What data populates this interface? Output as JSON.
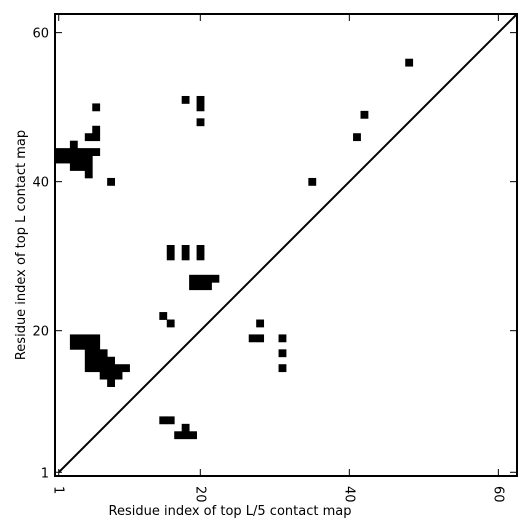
{
  "chart_data": {
    "type": "heatmap",
    "xlabel": "Residue index of top L/5 contact map",
    "ylabel": "Residue index of top L contact map",
    "xlim": [
      0.5,
      62.5
    ],
    "ylim": [
      0.5,
      62.5
    ],
    "x_ticks": [
      1,
      20,
      40,
      60
    ],
    "y_ticks": [
      1,
      20,
      40,
      60
    ],
    "grid": false,
    "diagonal": [
      [
        1,
        1
      ],
      [
        62.5,
        62.5
      ]
    ],
    "cell_color": "#000000",
    "line_color": "#000000",
    "cells": [
      [
        1,
        43
      ],
      [
        1,
        44
      ],
      [
        2,
        43
      ],
      [
        2,
        44
      ],
      [
        3,
        42
      ],
      [
        3,
        43
      ],
      [
        3,
        44
      ],
      [
        3,
        45
      ],
      [
        4,
        42
      ],
      [
        4,
        43
      ],
      [
        4,
        44
      ],
      [
        5,
        41
      ],
      [
        5,
        42
      ],
      [
        5,
        43
      ],
      [
        5,
        44
      ],
      [
        5,
        46
      ],
      [
        6,
        44
      ],
      [
        6,
        46
      ],
      [
        6,
        47
      ],
      [
        6,
        50
      ],
      [
        8,
        40
      ],
      [
        3,
        18
      ],
      [
        3,
        19
      ],
      [
        4,
        18
      ],
      [
        4,
        19
      ],
      [
        5,
        15
      ],
      [
        5,
        16
      ],
      [
        5,
        17
      ],
      [
        5,
        18
      ],
      [
        5,
        19
      ],
      [
        6,
        15
      ],
      [
        6,
        16
      ],
      [
        6,
        17
      ],
      [
        6,
        18
      ],
      [
        6,
        19
      ],
      [
        7,
        14
      ],
      [
        7,
        15
      ],
      [
        7,
        16
      ],
      [
        7,
        17
      ],
      [
        8,
        13
      ],
      [
        8,
        14
      ],
      [
        8,
        15
      ],
      [
        8,
        16
      ],
      [
        9,
        14
      ],
      [
        9,
        15
      ],
      [
        10,
        15
      ],
      [
        15,
        22
      ],
      [
        16,
        21
      ],
      [
        16,
        30
      ],
      [
        16,
        31
      ],
      [
        18,
        30
      ],
      [
        18,
        31
      ],
      [
        18,
        51
      ],
      [
        20,
        30
      ],
      [
        20,
        31
      ],
      [
        20,
        48
      ],
      [
        20,
        50
      ],
      [
        20,
        51
      ],
      [
        19,
        26
      ],
      [
        19,
        27
      ],
      [
        20,
        26
      ],
      [
        20,
        27
      ],
      [
        21,
        26
      ],
      [
        21,
        27
      ],
      [
        22,
        27
      ],
      [
        15,
        8
      ],
      [
        16,
        8
      ],
      [
        17,
        6
      ],
      [
        18,
        6
      ],
      [
        18,
        7
      ],
      [
        19,
        6
      ],
      [
        27,
        19
      ],
      [
        28,
        19
      ],
      [
        28,
        21
      ],
      [
        31,
        15
      ],
      [
        31,
        17
      ],
      [
        31,
        19
      ],
      [
        35,
        40
      ],
      [
        41,
        46
      ],
      [
        42,
        49
      ],
      [
        48,
        56
      ]
    ]
  }
}
